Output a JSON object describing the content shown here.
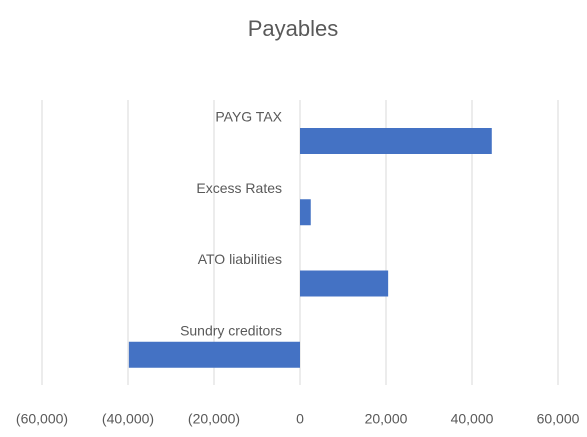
{
  "chart_data": {
    "type": "barh",
    "title": "Payables",
    "categories": [
      "PAYG TAX",
      "Excess Rates",
      "ATO liabilities",
      "Sundry creditors"
    ],
    "values": [
      44600,
      2500,
      20500,
      -39800
    ],
    "color": "#4472c4",
    "xlim": [
      -60000,
      60000
    ],
    "xticks": [
      {
        "value": -60000,
        "label": "(60,000)"
      },
      {
        "value": -40000,
        "label": "(40,000)"
      },
      {
        "value": -20000,
        "label": "(20,000)"
      },
      0,
      {
        "value": 20000,
        "label": "20,000"
      },
      {
        "value": 40000,
        "label": "40,000"
      },
      {
        "value": 60000,
        "label": "60,000"
      }
    ],
    "grid": true
  }
}
